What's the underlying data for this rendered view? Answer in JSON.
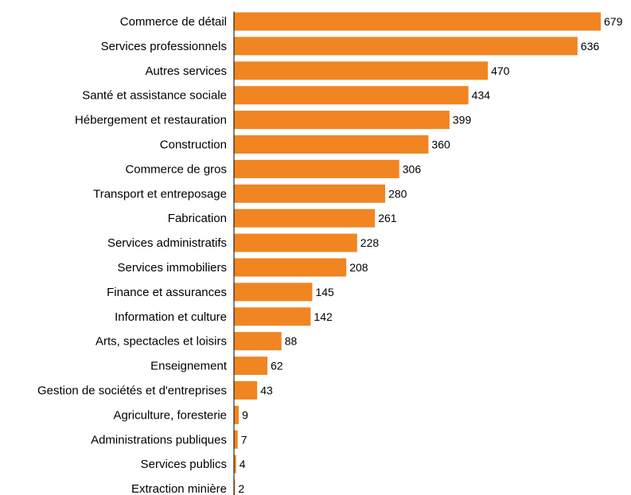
{
  "chart_data": {
    "type": "bar",
    "orientation": "horizontal",
    "bar_color": "#F08522",
    "xlim": [
      0,
      679
    ],
    "grid": false,
    "categories": [
      "Commerce de détail",
      "Services professionnels",
      "Autres services",
      "Santé et assistance sociale",
      "Hébergement et restauration",
      "Construction",
      "Commerce de gros",
      "Transport et entreposage",
      "Fabrication",
      "Services administratifs",
      "Services immobiliers",
      "Finance et assurances",
      "Information et culture",
      "Arts, spectacles et loisirs",
      "Enseignement",
      "Gestion de sociétés et d'entreprises",
      "Agriculture, foresterie",
      "Administrations publiques",
      "Services publics",
      "Extraction minière"
    ],
    "values": [
      679,
      636,
      470,
      434,
      399,
      360,
      306,
      280,
      261,
      228,
      208,
      145,
      142,
      88,
      62,
      43,
      9,
      7,
      4,
      2
    ]
  }
}
